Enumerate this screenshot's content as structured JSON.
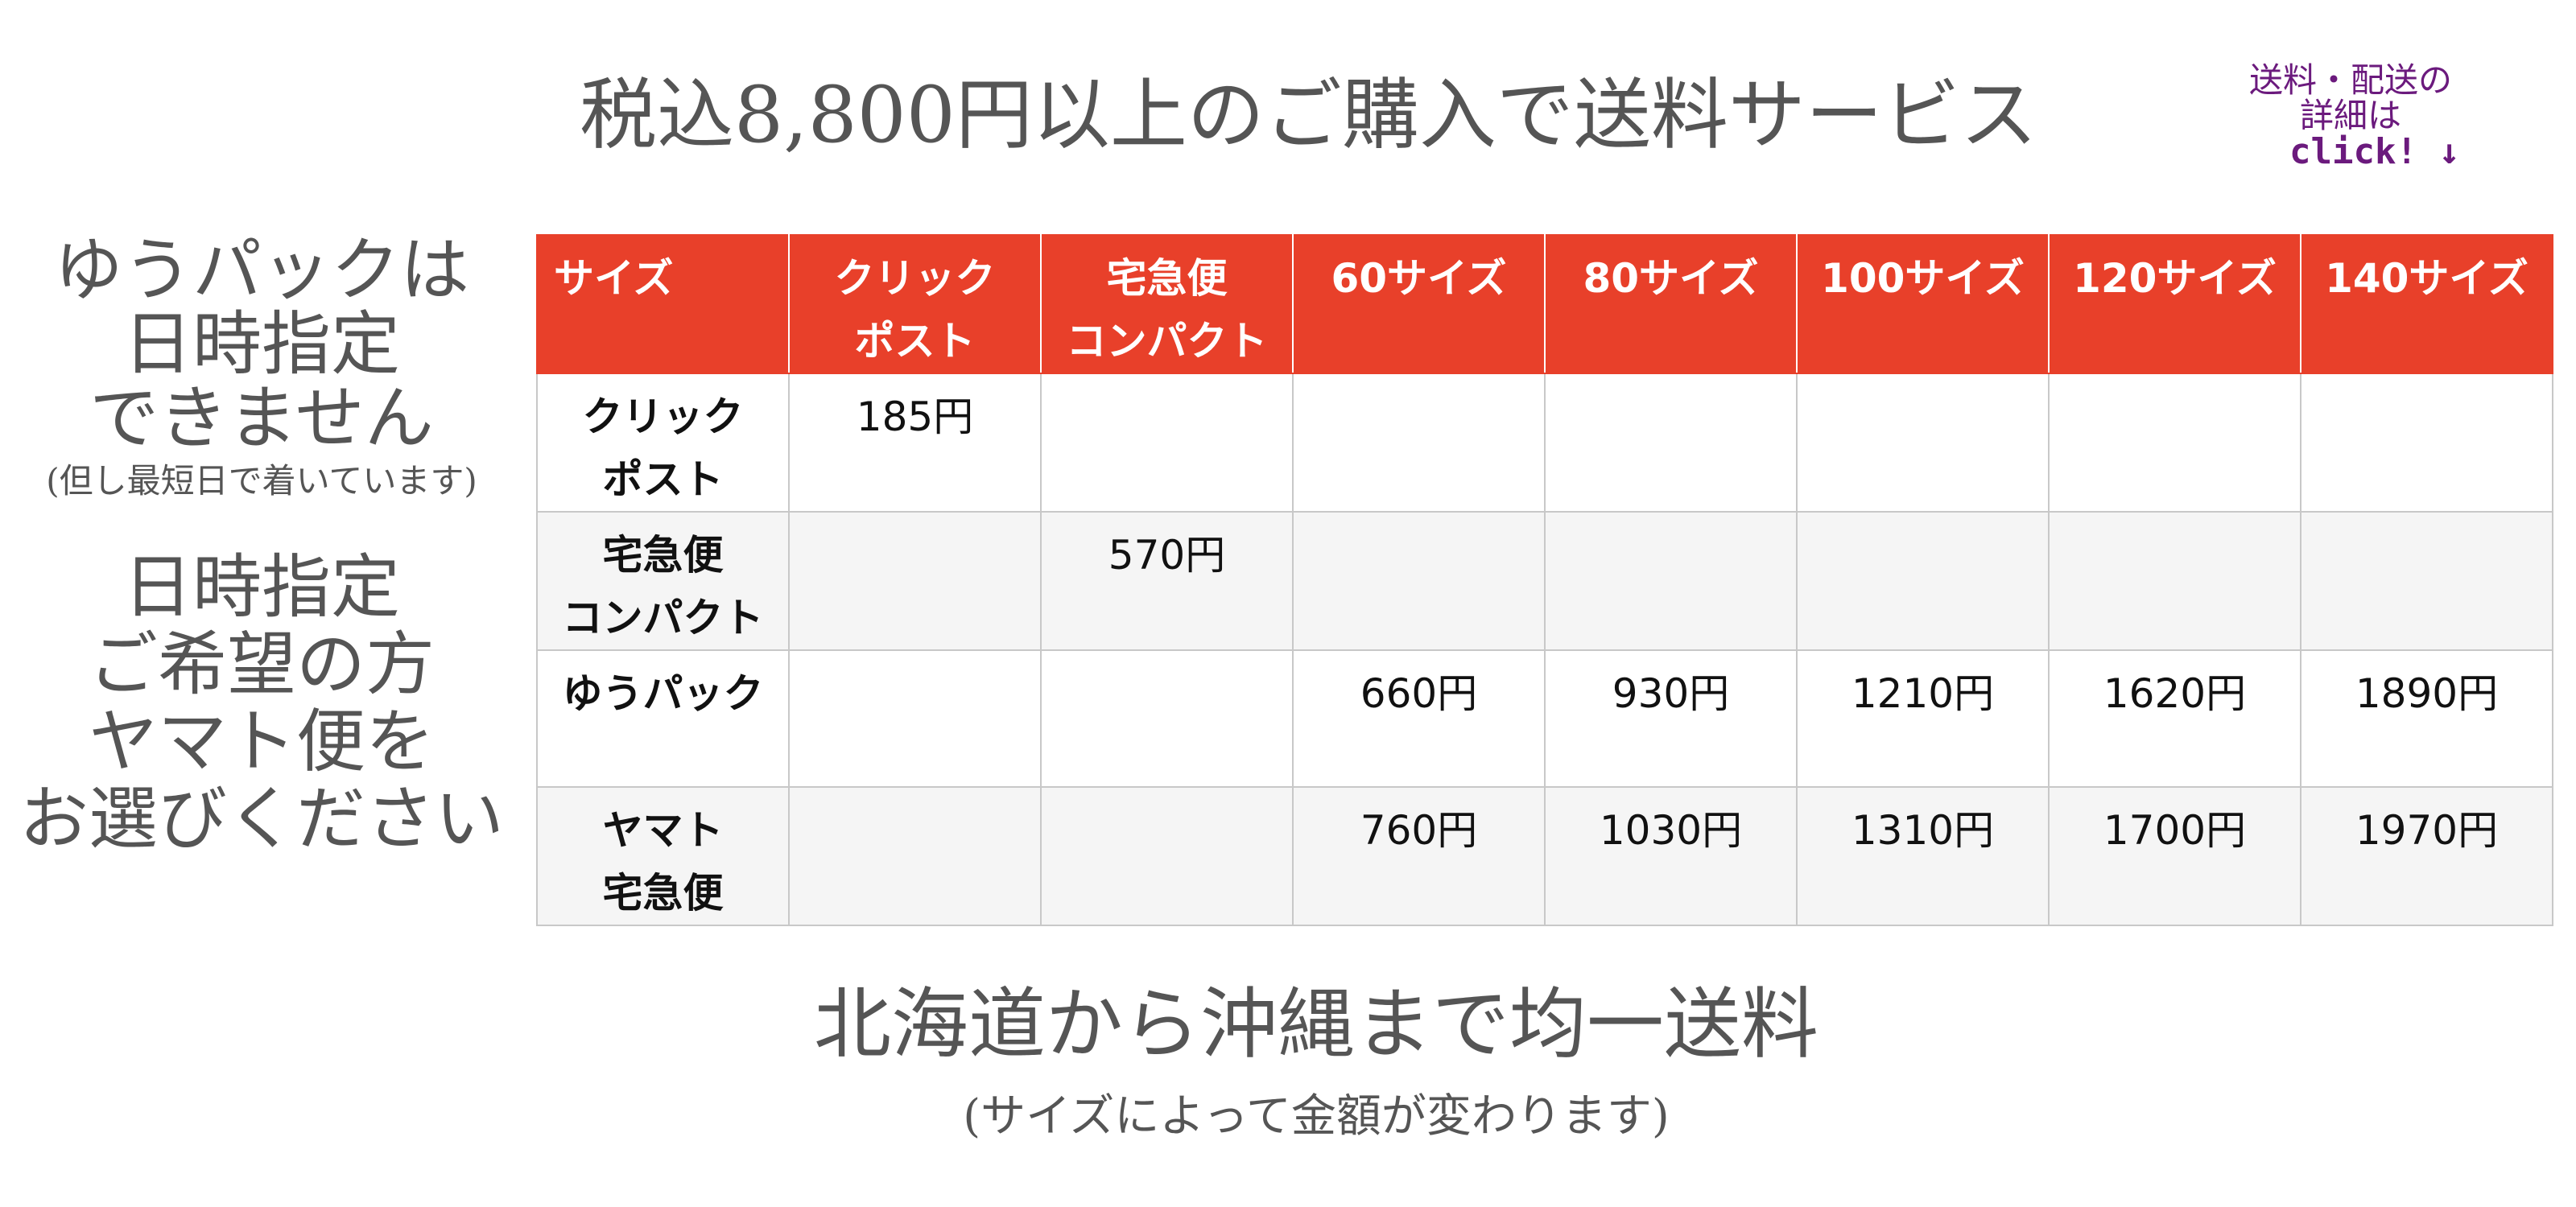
{
  "header": {
    "title": "税込8,800円以上のご購入で送料サービス",
    "detail_link": {
      "line1": "送料・配送の",
      "line2": "詳細は",
      "line3": "click! ↓"
    }
  },
  "left_notes": {
    "yupack_note": {
      "lines": [
        "ゆうパックは",
        "日時指定",
        "できません"
      ],
      "sub": "(但し最短日で着いています)"
    },
    "yamato_note": {
      "lines": [
        "日時指定",
        "ご希望の方",
        "ヤマト便を",
        "お選びください"
      ]
    }
  },
  "table": {
    "columns": [
      "サイズ",
      "クリック\nポスト",
      "宅急便\nコンパクト",
      "60サイズ",
      "80サイズ",
      "100サイズ",
      "120サイズ",
      "140サイズ"
    ],
    "rows": [
      {
        "label": "クリック\nポスト",
        "cells": [
          "185円",
          "",
          "",
          "",
          "",
          "",
          ""
        ]
      },
      {
        "label": "宅急便\nコンパクト",
        "cells": [
          "",
          "570円",
          "",
          "",
          "",
          "",
          ""
        ]
      },
      {
        "label": "ゆうパック",
        "cells": [
          "",
          "",
          "660円",
          "930円",
          "1210円",
          "1620円",
          "1890円"
        ]
      },
      {
        "label": "ヤマト\n宅急便",
        "cells": [
          "",
          "",
          "760円",
          "1030円",
          "1310円",
          "1700円",
          "1970円"
        ]
      }
    ]
  },
  "footer": {
    "main": "北海道から沖縄まで均一送料",
    "sub": "(サイズによって金額が変わります)"
  },
  "colors": {
    "header_bg": "#e8402a",
    "link_text": "#6b1a7d",
    "heading_text": "#555555"
  }
}
